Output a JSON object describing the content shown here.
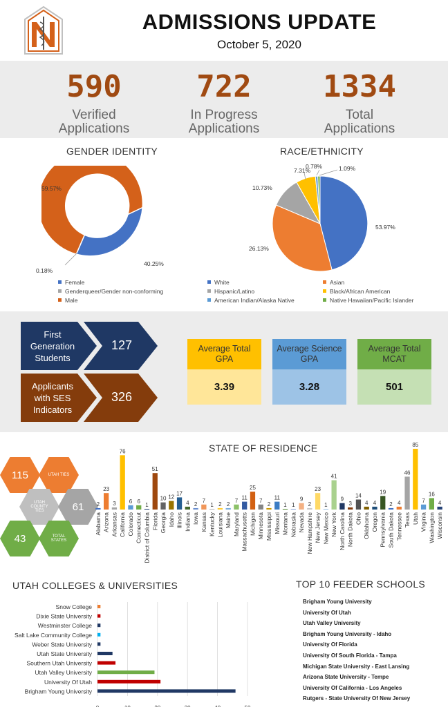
{
  "header": {
    "title": "ADMISSIONS UPDATE",
    "date": "October 5, 2020",
    "logo_letter": "N"
  },
  "summary": [
    {
      "value": "590",
      "label1": "Verified",
      "label2": "Applications"
    },
    {
      "value": "722",
      "label1": "In Progress",
      "label2": "Applications"
    },
    {
      "value": "1334",
      "label1": "Total",
      "label2": "Applications"
    }
  ],
  "gender": {
    "title": "GENDER IDENTITY",
    "legend": [
      "Female",
      "Genderqueer/Gender non-conforming",
      "Male"
    ],
    "colors": [
      "#4472c4",
      "#a5a5a5",
      "#d4611a"
    ],
    "labels": [
      "40.25%",
      "0.18%",
      "59.57%"
    ]
  },
  "race": {
    "title": "RACE/ETHNICITY",
    "legend": [
      "White",
      "Asian",
      "Hispanic/Latino",
      "Black/African American",
      "American Indian/Alaska Native",
      "Native Hawaiian/Pacific Islander"
    ],
    "colors": [
      "#4472c4",
      "#ed7d31",
      "#a5a5a5",
      "#ffc000",
      "#5b9bd5",
      "#70ad47"
    ],
    "labels": [
      "53.97%",
      "26.13%",
      "10.73%",
      "7.31%",
      "0.78%",
      "1.09%"
    ]
  },
  "indicators": [
    {
      "label": "First Generation Students",
      "value": "127",
      "color": "#1f3864"
    },
    {
      "label": "Applicants with SES Indicators",
      "value": "326",
      "color": "#843c0c"
    }
  ],
  "averages": [
    {
      "label": "Average Total GPA",
      "value": "3.39",
      "head": "#ffc000",
      "body": "#ffe699"
    },
    {
      "label": "Average Science GPA",
      "value": "3.28",
      "head": "#5b9bd5",
      "body": "#9dc3e6"
    },
    {
      "label": "Average Total MCAT",
      "value": "501",
      "head": "#70ad47",
      "body": "#c5e0b4"
    }
  ],
  "hexes": [
    {
      "value": "115",
      "label": "UTAH TIES",
      "color": "#ed7d31"
    },
    {
      "value": "",
      "label": "UTAH COUNTY TIES",
      "color": "#bfbfbf"
    },
    {
      "value": "61",
      "label": "",
      "color": "#a5a5a5"
    },
    {
      "value": "43",
      "label": "",
      "color": "#70ad47"
    },
    {
      "value": "",
      "label": "TOTAL STATES",
      "color": "#70ad47"
    }
  ],
  "chart_data": [
    {
      "type": "bar",
      "title": "STATE OF RESIDENCE",
      "categories": [
        "Alabama",
        "Arizona",
        "Arkansas",
        "California",
        "Colorado",
        "Connecticut",
        "District of Columbia",
        "Florida",
        "Georgia",
        "Idaho",
        "Illinois",
        "Indiana",
        "Iowa",
        "Kansas",
        "Kentucky",
        "Louisiana",
        "Maine",
        "Maryland",
        "Massachusetts",
        "Michigan",
        "Minnesota",
        "Mississippi",
        "Missouri",
        "Montana",
        "Nebraska",
        "Nevada",
        "New Hampshire",
        "New Jersey",
        "New Mexico",
        "New York",
        "North Carolina",
        "North Dakota",
        "Ohio",
        "Oklahoma",
        "Oregon",
        "Pennsylvania",
        "South Dakota",
        "Tennessee",
        "Texas",
        "Utah",
        "Virginia",
        "Washington",
        "Wisconsin"
      ],
      "values": [
        2,
        23,
        3,
        76,
        6,
        6,
        1,
        51,
        10,
        12,
        17,
        4,
        2,
        7,
        1,
        2,
        2,
        7,
        11,
        25,
        7,
        2,
        11,
        1,
        1,
        9,
        2,
        23,
        1,
        41,
        9,
        3,
        14,
        4,
        4,
        19,
        2,
        4,
        46,
        85,
        7,
        16,
        4
      ],
      "colors": [
        "#4472c4",
        "#ed7d31",
        "#a5a5a5",
        "#ffc000",
        "#5b9bd5",
        "#70ad47",
        "#264478",
        "#9e480e",
        "#636363",
        "#997300",
        "#255e91",
        "#43682b",
        "#698ed0",
        "#f1975a",
        "#b7b7b7",
        "#ffcd33",
        "#7cafdd",
        "#8cc168",
        "#335aa1",
        "#d26012",
        "#848484",
        "#cc9a00",
        "#3c7dc4",
        "#5a8f3a",
        "#8faadc",
        "#f4b183",
        "#c9c9c9",
        "#ffd966",
        "#9dc3e6",
        "#a9d18e",
        "#203864",
        "#843c0c",
        "#525252",
        "#806000",
        "#1f4e79",
        "#375623",
        "#4472c4",
        "#ed7d31",
        "#a5a5a5",
        "#ffc000",
        "#5b9bd5",
        "#70ad47",
        "#264478"
      ]
    },
    {
      "type": "bar",
      "title": "UTAH COLLEGES & UNIVERSITIES",
      "orientation": "horizontal",
      "categories": [
        "Snow College",
        "Dixie State University",
        "Westminster College",
        "Salt Lake Community College",
        "Weber State University",
        "Utah State University",
        "Southern Utah University",
        "Utah Valley University",
        "University Of Utah",
        "Brigham Young University"
      ],
      "values": [
        1,
        1,
        1,
        1,
        1,
        5,
        6,
        19,
        21,
        46
      ],
      "colors": [
        "#ed7d31",
        "#c00000",
        "#203864",
        "#00b0f0",
        "#203864",
        "#203864",
        "#c00000",
        "#70ad47",
        "#c00000",
        "#203864"
      ],
      "xlim": [
        0,
        50
      ],
      "xticks": [
        "0",
        "10",
        "20",
        "30",
        "40",
        "50"
      ]
    }
  ],
  "feeder": {
    "title": "TOP 10 FEEDER SCHOOLS",
    "schools": [
      "Brigham Young University",
      "University Of Utah",
      "Utah Valley University",
      "Brigham Young University - Idaho",
      "University Of Florida",
      "University Of South Florida - Tampa",
      "Michigan State University - East Lansing",
      "Arizona State University - Tempe",
      "University Of California - Los Angeles",
      "Rutgers - State University Of New Jersey"
    ]
  }
}
